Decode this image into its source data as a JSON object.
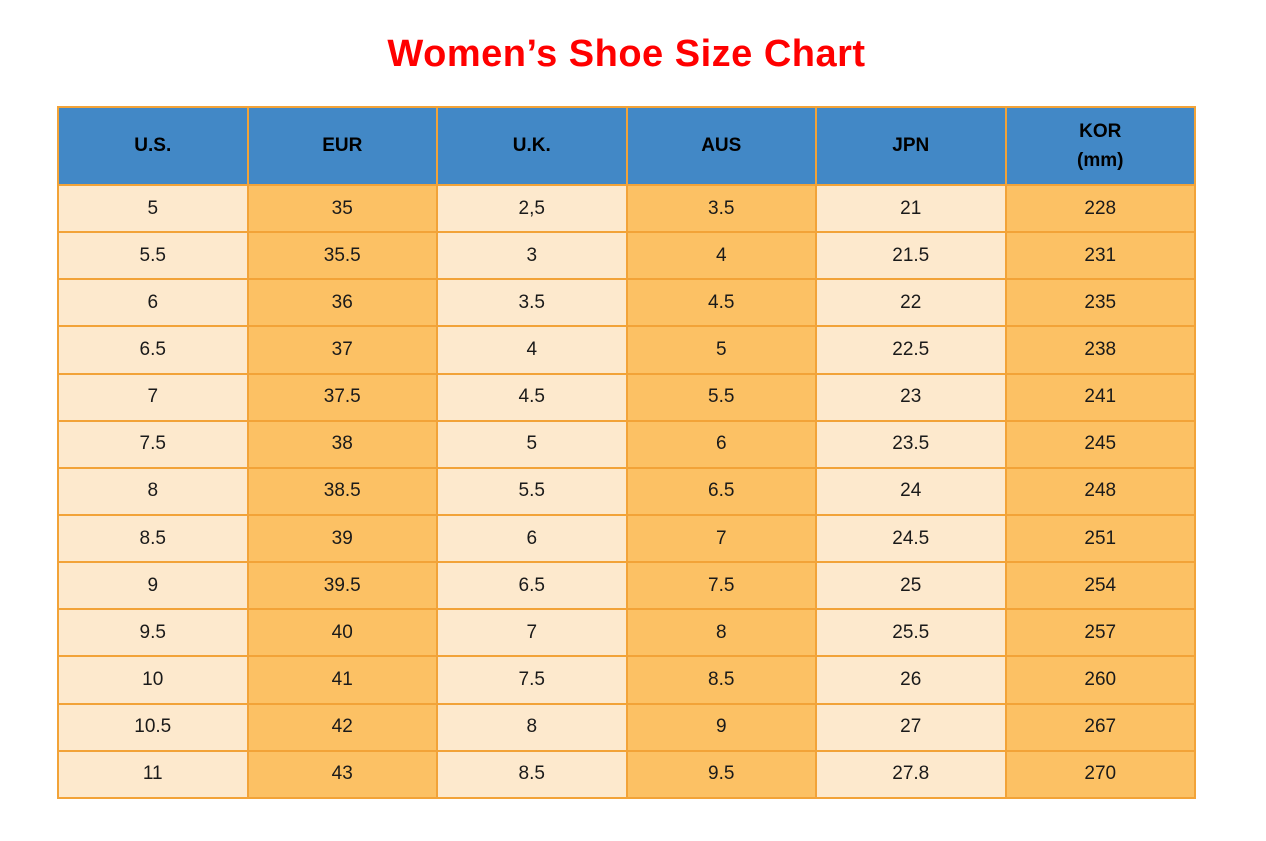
{
  "colors": {
    "header_bg": "#4288C6",
    "light_cell": "#FDE9CD",
    "dark_cell": "#FCC164",
    "border": "#F2A338",
    "title": "#FF0000"
  },
  "chart_data": {
    "type": "table",
    "title": "Women’s Shoe Size Chart",
    "columns": [
      {
        "label": "U.S.",
        "sublabel": "",
        "shade": "light"
      },
      {
        "label": "EUR",
        "sublabel": "",
        "shade": "dark"
      },
      {
        "label": "U.K.",
        "sublabel": "",
        "shade": "light"
      },
      {
        "label": "AUS",
        "sublabel": "",
        "shade": "dark"
      },
      {
        "label": "JPN",
        "sublabel": "",
        "shade": "light"
      },
      {
        "label": "KOR",
        "sublabel": "(mm)",
        "shade": "dark"
      }
    ],
    "rows": [
      [
        "5",
        "35",
        "2,5",
        "3.5",
        "21",
        "228"
      ],
      [
        "5.5",
        "35.5",
        "3",
        "4",
        "21.5",
        "231"
      ],
      [
        "6",
        "36",
        "3.5",
        "4.5",
        "22",
        "235"
      ],
      [
        "6.5",
        "37",
        "4",
        "5",
        "22.5",
        "238"
      ],
      [
        "7",
        "37.5",
        "4.5",
        "5.5",
        "23",
        "241"
      ],
      [
        "7.5",
        "38",
        "5",
        "6",
        "23.5",
        "245"
      ],
      [
        "8",
        "38.5",
        "5.5",
        "6.5",
        "24",
        "248"
      ],
      [
        "8.5",
        "39",
        "6",
        "7",
        "24.5",
        "251"
      ],
      [
        "9",
        "39.5",
        "6.5",
        "7.5",
        "25",
        "254"
      ],
      [
        "9.5",
        "40",
        "7",
        "8",
        "25.5",
        "257"
      ],
      [
        "10",
        "41",
        "7.5",
        "8.5",
        "26",
        "260"
      ],
      [
        "10.5",
        "42",
        "8",
        "9",
        "27",
        "267"
      ],
      [
        "11",
        "43",
        "8.5",
        "9.5",
        "27.8",
        "270"
      ]
    ]
  }
}
